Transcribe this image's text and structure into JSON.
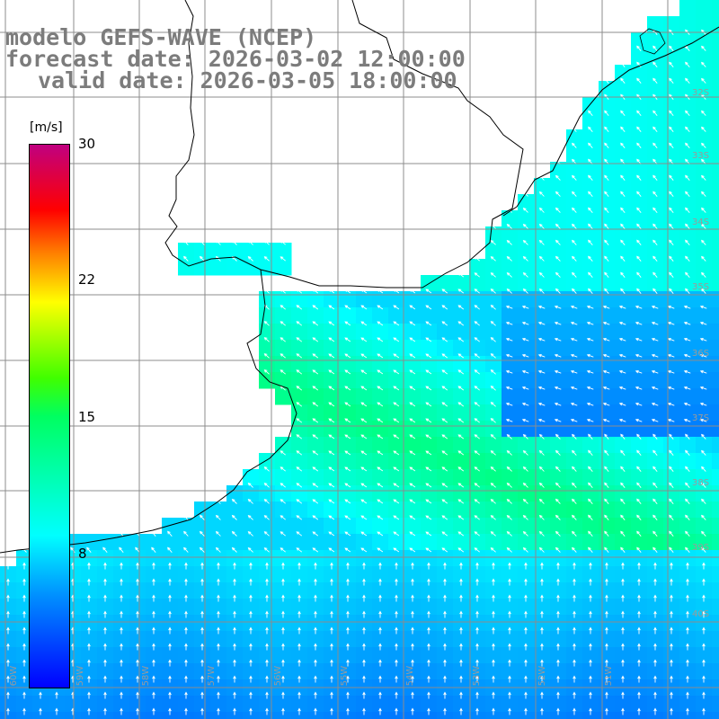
{
  "title": {
    "line1": "modelo GEFS-WAVE (NCEP)",
    "line2": "forecast date: 2026-03-02 12:00:00",
    "line3": "valid date: 2026-03-05 18:00:00"
  },
  "colorbar": {
    "unit": "[m/s]",
    "ticks": [
      "30",
      "22",
      "15",
      "8"
    ],
    "range": [
      0,
      30
    ]
  },
  "axes": {
    "lon_labels": [
      "60W",
      "59W",
      "58W",
      "57W",
      "56W",
      "55W",
      "54W",
      "53W",
      "52W",
      "51W"
    ],
    "lat_labels": [
      "32S",
      "33S",
      "34S",
      "35S",
      "36S",
      "37S",
      "38S",
      "39S",
      "40S"
    ]
  },
  "colors": {
    "land": "#ffffff",
    "grid": "#8c8c8c",
    "coast": "#000000",
    "arrow": "#ffffff",
    "title": "#7c7c7c"
  }
}
